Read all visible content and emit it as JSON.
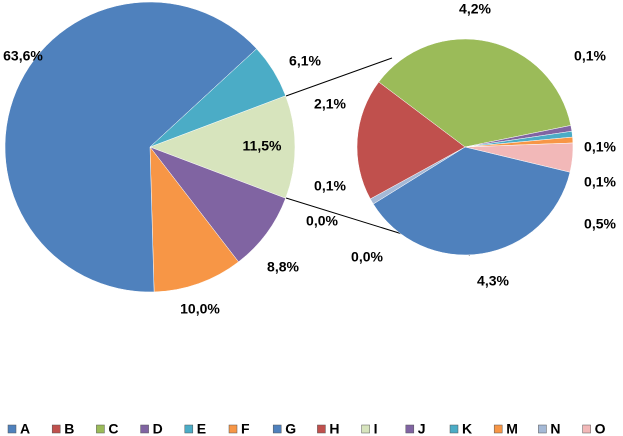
{
  "chart_data": {
    "type": "pie-of-pie",
    "slices": [
      {
        "name": "A",
        "color": "#4f81bd",
        "value": 4.3,
        "label": "4,3%",
        "pie": "secondary"
      },
      {
        "name": "B",
        "color": "#c0504d",
        "value": 2.1,
        "label": "2,1%",
        "pie": "secondary"
      },
      {
        "name": "C",
        "color": "#9bbb59",
        "value": 4.2,
        "label": "4,2%",
        "pie": "secondary"
      },
      {
        "name": "D",
        "color": "#8064a2",
        "value": 0.1,
        "label": "0,1%",
        "pie": "secondary"
      },
      {
        "name": "E",
        "color": "#4bacc6",
        "value": 0.1,
        "label": "0,1%",
        "pie": "secondary"
      },
      {
        "name": "F",
        "color": "#f79646",
        "value": 0.1,
        "label": "0,1%",
        "pie": "secondary"
      },
      {
        "name": "G",
        "color": "#4f81bd",
        "value": 63.6,
        "label": "63,6%",
        "pie": "main"
      },
      {
        "name": "H",
        "color": "#c0504d",
        "value": 0.0,
        "label": "0,0%",
        "pie": "secondary"
      },
      {
        "name": "I",
        "color": "#d7e4bd",
        "value": 0.0,
        "label": "0,0%",
        "pie": "secondary"
      },
      {
        "name": "J",
        "color": "#8064a2",
        "value": 8.8,
        "label": "8,8%",
        "pie": "main"
      },
      {
        "name": "K",
        "color": "#4bacc6",
        "value": 6.1,
        "label": "6,1%",
        "pie": "main"
      },
      {
        "name": "M",
        "color": "#f79646",
        "value": 10.0,
        "label": "10,0%",
        "pie": "main"
      },
      {
        "name": "N",
        "color": "#a5b9d6",
        "value": 0.1,
        "label": "0,1%",
        "pie": "secondary"
      },
      {
        "name": "O",
        "color": "#f2b8b8",
        "value": 0.5,
        "label": "0,5%",
        "pie": "secondary"
      }
    ],
    "other": {
      "value": 11.5,
      "label": "11,5%",
      "color": "#d7e4bd"
    },
    "legend": "bottom"
  }
}
